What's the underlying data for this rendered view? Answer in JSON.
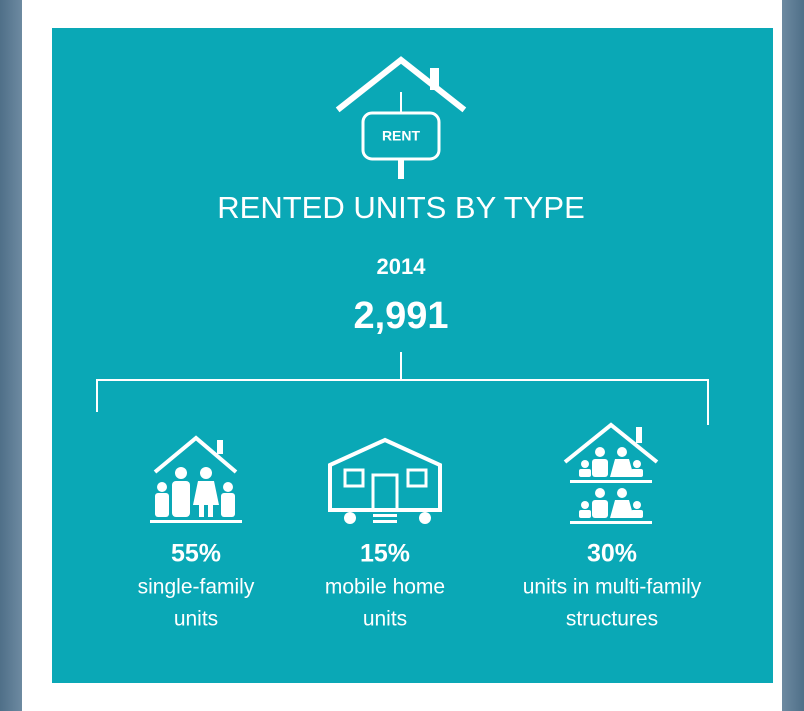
{
  "title": "RENTED UNITS BY TYPE",
  "sign": "RENT",
  "year": "2014",
  "total": "2,991",
  "items": [
    {
      "percent": "55%",
      "label": [
        "single-family",
        "units"
      ]
    },
    {
      "percent": "15%",
      "label": [
        "mobile home",
        "units"
      ]
    },
    {
      "percent": "30%",
      "label": [
        "units in multi-family",
        "structures"
      ]
    }
  ]
}
